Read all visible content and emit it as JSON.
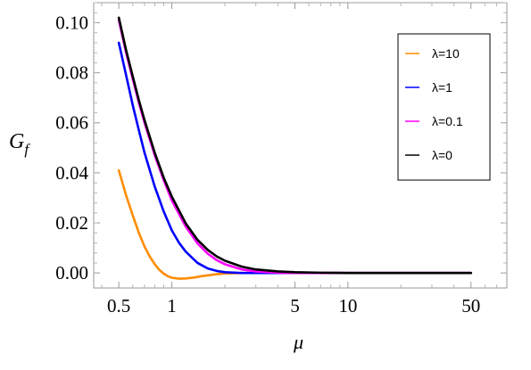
{
  "chart_data": {
    "type": "line",
    "xlabel": "μ",
    "ylabel": {
      "main": "G",
      "sub": "f"
    },
    "x_scale": "log",
    "xlim": [
      0.36,
      80
    ],
    "ylim": [
      -0.006,
      0.108
    ],
    "x_ticks": [
      0.5,
      1,
      5,
      10,
      50
    ],
    "x_tick_labels": [
      "0.5",
      "1",
      "5",
      "10",
      "50"
    ],
    "y_ticks": [
      0.0,
      0.02,
      0.04,
      0.06,
      0.08,
      0.1
    ],
    "y_tick_labels": [
      "0.00",
      "0.02",
      "0.04",
      "0.06",
      "0.08",
      "0.10"
    ],
    "grid": false,
    "legend_position": "top-right",
    "series": [
      {
        "name": "λ=10",
        "color": "#ff8c00",
        "points": [
          [
            0.5,
            0.041
          ],
          [
            0.55,
            0.031
          ],
          [
            0.6,
            0.023
          ],
          [
            0.65,
            0.016
          ],
          [
            0.7,
            0.0105
          ],
          [
            0.75,
            0.0065
          ],
          [
            0.8,
            0.0035
          ],
          [
            0.85,
            0.0012
          ],
          [
            0.9,
            -0.0003
          ],
          [
            0.95,
            -0.0013
          ],
          [
            1.0,
            -0.0019
          ],
          [
            1.1,
            -0.0023
          ],
          [
            1.2,
            -0.0022
          ],
          [
            1.35,
            -0.0018
          ],
          [
            1.5,
            -0.0012
          ],
          [
            1.75,
            -0.0006
          ],
          [
            2.0,
            -0.0002
          ],
          [
            2.5,
            0.0
          ],
          [
            3,
            0.0
          ],
          [
            5,
            0.0
          ],
          [
            10,
            0.0
          ],
          [
            20,
            0.0
          ],
          [
            50,
            0.0
          ]
        ]
      },
      {
        "name": "λ=1",
        "color": "#0000ff",
        "points": [
          [
            0.5,
            0.092
          ],
          [
            0.55,
            0.079
          ],
          [
            0.6,
            0.067
          ],
          [
            0.65,
            0.057
          ],
          [
            0.7,
            0.048
          ],
          [
            0.8,
            0.0345
          ],
          [
            0.9,
            0.0245
          ],
          [
            1.0,
            0.017
          ],
          [
            1.1,
            0.012
          ],
          [
            1.2,
            0.0085
          ],
          [
            1.4,
            0.004
          ],
          [
            1.6,
            0.0018
          ],
          [
            1.8,
            0.0008
          ],
          [
            2.0,
            0.0003
          ],
          [
            2.5,
            0.0
          ],
          [
            3,
            0.0
          ],
          [
            5,
            0.0
          ],
          [
            10,
            0.0
          ],
          [
            50,
            0.0
          ]
        ]
      },
      {
        "name": "λ=0.1",
        "color": "#ff00ff",
        "points": [
          [
            0.5,
            0.101
          ],
          [
            0.55,
            0.088
          ],
          [
            0.6,
            0.0775
          ],
          [
            0.65,
            0.068
          ],
          [
            0.7,
            0.06
          ],
          [
            0.8,
            0.047
          ],
          [
            0.9,
            0.037
          ],
          [
            1.0,
            0.029
          ],
          [
            1.2,
            0.0185
          ],
          [
            1.4,
            0.0118
          ],
          [
            1.6,
            0.0077
          ],
          [
            1.8,
            0.0051
          ],
          [
            2.0,
            0.0035
          ],
          [
            2.5,
            0.0014
          ],
          [
            3.0,
            0.0006
          ],
          [
            4.0,
            0.0001
          ],
          [
            5,
            0.0
          ],
          [
            10,
            0.0
          ],
          [
            50,
            0.0
          ]
        ]
      },
      {
        "name": "λ=0",
        "color": "#000000",
        "points": [
          [
            0.5,
            0.102
          ],
          [
            0.55,
            0.089
          ],
          [
            0.6,
            0.0785
          ],
          [
            0.65,
            0.069
          ],
          [
            0.7,
            0.061
          ],
          [
            0.8,
            0.048
          ],
          [
            0.9,
            0.038
          ],
          [
            1.0,
            0.0305
          ],
          [
            1.2,
            0.0198
          ],
          [
            1.4,
            0.0132
          ],
          [
            1.6,
            0.0092
          ],
          [
            1.8,
            0.0066
          ],
          [
            2.0,
            0.0049
          ],
          [
            2.5,
            0.0025
          ],
          [
            3.0,
            0.0014
          ],
          [
            4.0,
            0.0006
          ],
          [
            5.0,
            0.0003
          ],
          [
            7.0,
            0.0001
          ],
          [
            10,
            0.0
          ],
          [
            20,
            0.0
          ],
          [
            50,
            0.0
          ]
        ]
      }
    ]
  }
}
